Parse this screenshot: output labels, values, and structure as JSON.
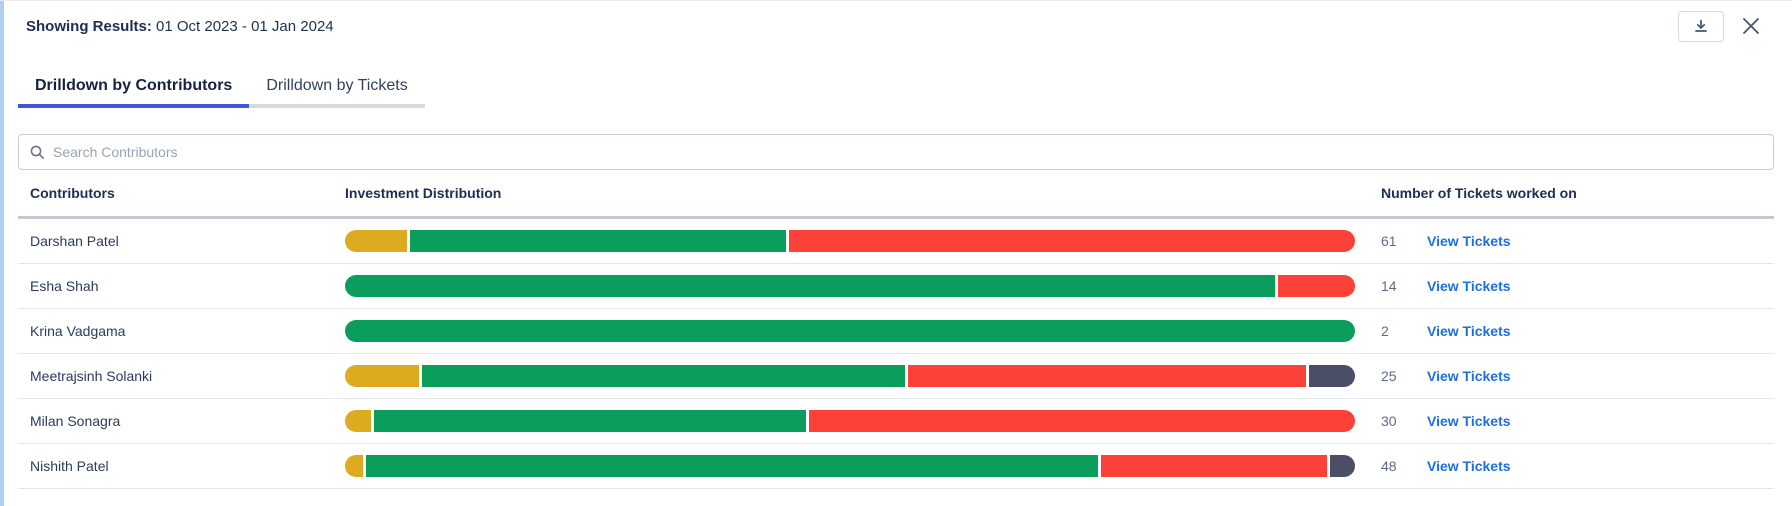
{
  "header": {
    "showing_results_label": "Showing Results:",
    "date_range": "01 Oct 2023 - 01 Jan 2024"
  },
  "tabs": [
    {
      "label": "Drilldown by Contributors",
      "active": true
    },
    {
      "label": "Drilldown by Tickets",
      "active": false
    }
  ],
  "search": {
    "placeholder": "Search Contributors",
    "value": ""
  },
  "table": {
    "columns": [
      "Contributors",
      "Investment Distribution",
      "Number of Tickets worked on"
    ],
    "view_link_label": "View Tickets",
    "rows": [
      {
        "name": "Darshan Patel",
        "tickets": "61",
        "segments": [
          {
            "color": "bar_yellow",
            "pct": 6.2
          },
          {
            "color": "bar_green",
            "pct": 37.4
          },
          {
            "color": "bar_red",
            "pct": 56.4
          }
        ]
      },
      {
        "name": "Esha Shah",
        "tickets": "14",
        "segments": [
          {
            "color": "bar_green",
            "pct": 92.4
          },
          {
            "color": "bar_red",
            "pct": 7.6
          }
        ]
      },
      {
        "name": "Krina Vadgama",
        "tickets": "2",
        "segments": [
          {
            "color": "bar_green",
            "pct": 100
          }
        ]
      },
      {
        "name": "Meetrajsinh Solanki",
        "tickets": "25",
        "segments": [
          {
            "color": "bar_yellow",
            "pct": 7.4
          },
          {
            "color": "bar_green",
            "pct": 48.2
          },
          {
            "color": "bar_red",
            "pct": 39.8
          },
          {
            "color": "bar_dark",
            "pct": 4.6
          }
        ]
      },
      {
        "name": "Milan Sonagra",
        "tickets": "30",
        "segments": [
          {
            "color": "bar_yellow",
            "pct": 2.6
          },
          {
            "color": "bar_green",
            "pct": 43.0
          },
          {
            "color": "bar_red",
            "pct": 54.4
          }
        ]
      },
      {
        "name": "Nishith Patel",
        "tickets": "48",
        "segments": [
          {
            "color": "bar_yellow",
            "pct": 1.8
          },
          {
            "color": "bar_green",
            "pct": 73.1
          },
          {
            "color": "bar_red",
            "pct": 22.6
          },
          {
            "color": "bar_dark",
            "pct": 2.5
          }
        ]
      }
    ]
  },
  "colors": {
    "bar_yellow": "#dcab1f",
    "bar_green": "#0a9d5c",
    "bar_red": "#fc4138",
    "bar_dark": "#4a4e66",
    "tab_accent": "#4356d8",
    "link_blue": "#1d6fe0",
    "left_edge": "#aed0f2"
  },
  "chart_data": {
    "type": "bar",
    "stacked": true,
    "orientation": "horizontal",
    "title": "Investment Distribution",
    "categories": [
      "Darshan Patel",
      "Esha Shah",
      "Krina Vadgama",
      "Meetrajsinh Solanki",
      "Milan Sonagra",
      "Nishith Patel"
    ],
    "series": [
      {
        "name": "yellow",
        "values": [
          6.2,
          0,
          0,
          7.4,
          2.6,
          1.8
        ]
      },
      {
        "name": "green",
        "values": [
          37.4,
          92.4,
          100,
          48.2,
          43.0,
          73.1
        ]
      },
      {
        "name": "red",
        "values": [
          56.4,
          7.6,
          0,
          39.8,
          54.4,
          22.6
        ]
      },
      {
        "name": "dark",
        "values": [
          0,
          0,
          0,
          4.6,
          0,
          2.5
        ]
      }
    ],
    "value_unit": "percent of bar width",
    "tickets_per_category": [
      61,
      14,
      2,
      25,
      30,
      48
    ],
    "xlim": [
      0,
      100
    ],
    "legend": false,
    "grid": false
  }
}
